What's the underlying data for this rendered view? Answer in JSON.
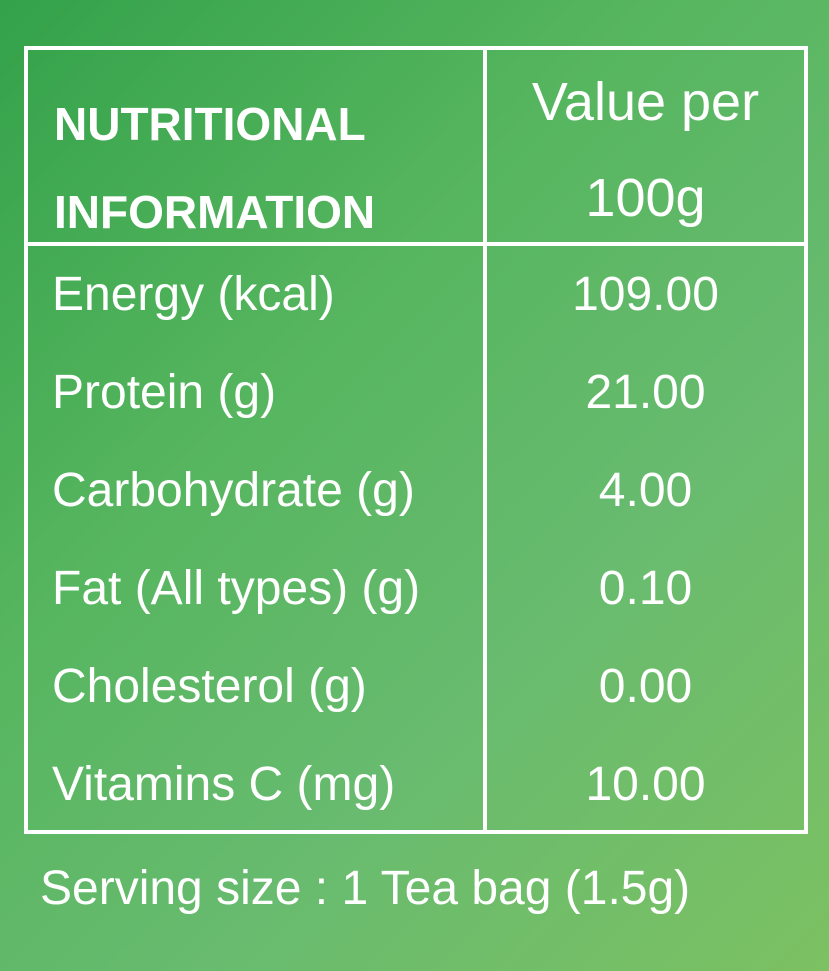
{
  "table": {
    "header": {
      "left_line1": "NUTRITIONAL",
      "left_line2": "INFORMATION",
      "right_line1": "Value per",
      "right_line2": "100g"
    },
    "rows": [
      {
        "label": "Energy (kcal)",
        "value": "109.00"
      },
      {
        "label": "Protein (g)",
        "value": "21.00"
      },
      {
        "label": "Carbohydrate (g)",
        "value": "4.00"
      },
      {
        "label": "Fat (All types) (g)",
        "value": "0.10"
      },
      {
        "label": "Cholesterol (g)",
        "value": "0.00"
      },
      {
        "label": "Vitamins C (mg)",
        "value": "10.00"
      }
    ]
  },
  "serving_size": "Serving size : 1 Tea bag (1.5g)",
  "colors": {
    "background_start": "#33a24a",
    "background_end": "#7cc162",
    "text": "#ffffff",
    "border": "#ffffff"
  }
}
